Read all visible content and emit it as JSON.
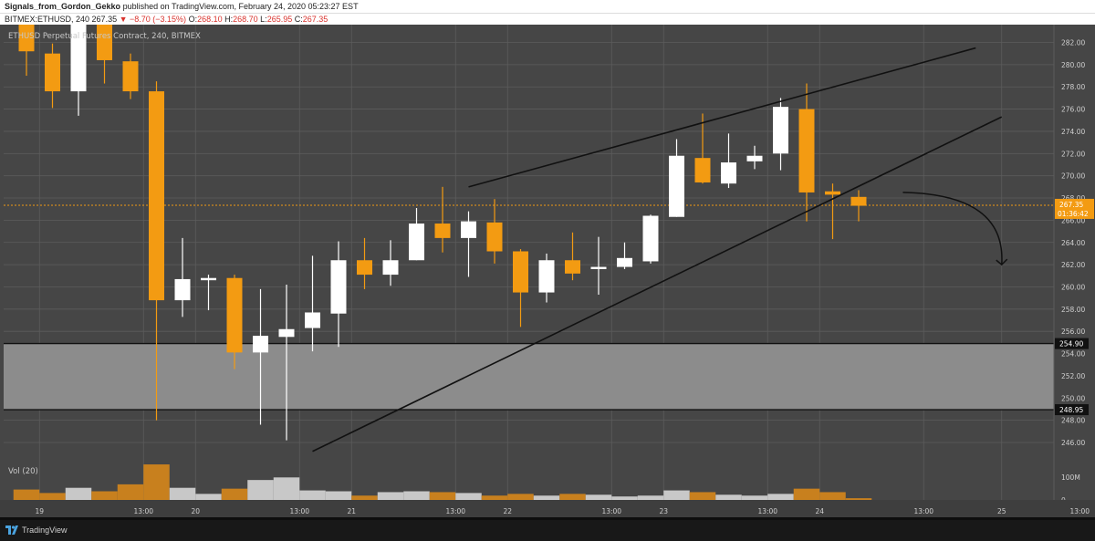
{
  "header": {
    "publisher": "Signals_from_Gordon_Gekko",
    "published_text": "published on TradingView.com, February 24, 2020 05:23:27 EST"
  },
  "symbol_bar": {
    "symbol": "BITMEX:ETHUSD, 240",
    "price": "267.35",
    "change": "▼ −8.70 (−3.15%)",
    "open_label": "O:",
    "open": "268.10",
    "high_label": "H:",
    "high": "268.70",
    "low_label": "L:",
    "low": "265.95",
    "close_label": "C:",
    "close": "267.35"
  },
  "footer": {
    "brand": "TradingView"
  },
  "colors": {
    "background": "#464646",
    "up_candle": "#ffffff",
    "down_candle": "#f39b12",
    "volume_up": "#c8c8c8",
    "volume_down": "#c8801e",
    "grid": "#5c5c5c",
    "zone_fill": "#8c8c8c",
    "trendline": "#111111",
    "last_price_line": "#f39b12"
  },
  "chart_data": {
    "type": "candlestick",
    "title": "ETHUSD Perpetual Futures Contract, 240, BITMEX",
    "ylim": [
      244.4,
      283.6
    ],
    "y_ticks": [
      "282.00",
      "280.00",
      "278.00",
      "276.00",
      "274.00",
      "272.00",
      "270.00",
      "268.00",
      "266.00",
      "264.00",
      "262.00",
      "260.00",
      "258.00",
      "256.00",
      "254.00",
      "252.00",
      "250.00",
      "248.00",
      "246.00"
    ],
    "x_ticks": [
      {
        "bar": 0.5,
        "label": "19"
      },
      {
        "bar": 4.5,
        "label": "13:00"
      },
      {
        "bar": 6.5,
        "label": "20"
      },
      {
        "bar": 10.5,
        "label": "13:00"
      },
      {
        "bar": 12.5,
        "label": "21"
      },
      {
        "bar": 16.5,
        "label": "13:00"
      },
      {
        "bar": 18.5,
        "label": "22"
      },
      {
        "bar": 22.5,
        "label": "13:00"
      },
      {
        "bar": 24.5,
        "label": "23"
      },
      {
        "bar": 28.5,
        "label": "13:00"
      },
      {
        "bar": 30.5,
        "label": "24"
      },
      {
        "bar": 34.5,
        "label": "13:00"
      },
      {
        "bar": 37.5,
        "label": "25"
      },
      {
        "bar": 40.5,
        "label": "13:00"
      }
    ],
    "candles": [
      {
        "o": 283.9,
        "h": 284.0,
        "l": 279.0,
        "c": 281.2
      },
      {
        "o": 281.0,
        "h": 281.9,
        "l": 276.1,
        "c": 277.6
      },
      {
        "o": 277.6,
        "h": 285.0,
        "l": 275.4,
        "c": 284.0
      },
      {
        "o": 284.0,
        "h": 284.5,
        "l": 278.3,
        "c": 280.4
      },
      {
        "o": 280.3,
        "h": 281.0,
        "l": 276.9,
        "c": 277.6
      },
      {
        "o": 277.6,
        "h": 278.5,
        "l": 248.0,
        "c": 258.8
      },
      {
        "o": 258.8,
        "h": 264.4,
        "l": 257.3,
        "c": 260.7
      },
      {
        "o": 260.6,
        "h": 261.1,
        "l": 257.9,
        "c": 260.8
      },
      {
        "o": 260.8,
        "h": 261.1,
        "l": 252.6,
        "c": 254.1
      },
      {
        "o": 254.1,
        "h": 259.8,
        "l": 247.6,
        "c": 255.6
      },
      {
        "o": 255.5,
        "h": 260.2,
        "l": 246.2,
        "c": 256.2
      },
      {
        "o": 256.3,
        "h": 262.8,
        "l": 254.2,
        "c": 257.7
      },
      {
        "o": 257.6,
        "h": 264.1,
        "l": 254.6,
        "c": 262.4
      },
      {
        "o": 262.4,
        "h": 264.4,
        "l": 259.8,
        "c": 261.1
      },
      {
        "o": 261.1,
        "h": 264.2,
        "l": 260.1,
        "c": 262.4
      },
      {
        "o": 262.4,
        "h": 267.1,
        "l": 262.4,
        "c": 265.7
      },
      {
        "o": 265.7,
        "h": 269.0,
        "l": 263.1,
        "c": 264.4
      },
      {
        "o": 264.4,
        "h": 266.8,
        "l": 260.9,
        "c": 265.9
      },
      {
        "o": 265.8,
        "h": 267.9,
        "l": 262.1,
        "c": 263.2
      },
      {
        "o": 263.2,
        "h": 263.4,
        "l": 256.4,
        "c": 259.5
      },
      {
        "o": 259.5,
        "h": 263.0,
        "l": 258.6,
        "c": 262.4
      },
      {
        "o": 262.4,
        "h": 264.9,
        "l": 260.6,
        "c": 261.2
      },
      {
        "o": 261.6,
        "h": 264.5,
        "l": 259.3,
        "c": 261.8
      },
      {
        "o": 261.8,
        "h": 264.0,
        "l": 261.6,
        "c": 262.6
      },
      {
        "o": 262.3,
        "h": 266.5,
        "l": 262.1,
        "c": 266.4
      },
      {
        "o": 266.3,
        "h": 273.3,
        "l": 266.3,
        "c": 271.8
      },
      {
        "o": 271.6,
        "h": 275.6,
        "l": 269.3,
        "c": 269.4
      },
      {
        "o": 269.3,
        "h": 273.8,
        "l": 268.9,
        "c": 271.2
      },
      {
        "o": 271.3,
        "h": 272.7,
        "l": 270.6,
        "c": 271.8
      },
      {
        "o": 272.0,
        "h": 277.0,
        "l": 270.5,
        "c": 276.2
      },
      {
        "o": 276.0,
        "h": 278.3,
        "l": 265.9,
        "c": 268.5
      },
      {
        "o": 268.6,
        "h": 269.3,
        "l": 264.3,
        "c": 268.3
      },
      {
        "o": 268.1,
        "h": 268.7,
        "l": 265.9,
        "c": 267.3
      }
    ],
    "volume": [
      {
        "v": 12,
        "up": false
      },
      {
        "v": 8,
        "up": false
      },
      {
        "v": 14,
        "up": true
      },
      {
        "v": 10,
        "up": false
      },
      {
        "v": 18,
        "up": false
      },
      {
        "v": 41,
        "up": false
      },
      {
        "v": 14,
        "up": true
      },
      {
        "v": 7,
        "up": true
      },
      {
        "v": 13,
        "up": false
      },
      {
        "v": 23,
        "up": true
      },
      {
        "v": 26,
        "up": true
      },
      {
        "v": 11,
        "up": true
      },
      {
        "v": 10,
        "up": true
      },
      {
        "v": 5,
        "up": false
      },
      {
        "v": 9,
        "up": true
      },
      {
        "v": 10,
        "up": true
      },
      {
        "v": 9,
        "up": false
      },
      {
        "v": 8,
        "up": true
      },
      {
        "v": 5,
        "up": false
      },
      {
        "v": 7,
        "up": false
      },
      {
        "v": 5,
        "up": true
      },
      {
        "v": 7,
        "up": false
      },
      {
        "v": 6,
        "up": true
      },
      {
        "v": 4,
        "up": true
      },
      {
        "v": 5,
        "up": true
      },
      {
        "v": 11,
        "up": true
      },
      {
        "v": 9,
        "up": false
      },
      {
        "v": 6,
        "up": true
      },
      {
        "v": 5,
        "up": true
      },
      {
        "v": 7,
        "up": true
      },
      {
        "v": 13,
        "up": false
      },
      {
        "v": 9,
        "up": false
      },
      {
        "v": 2,
        "up": false
      }
    ],
    "volume_label": "Vol (20)",
    "volume_ticks": [
      "100M",
      "0"
    ],
    "support_zone": {
      "top": 254.9,
      "bottom": 248.95
    },
    "support_labels": {
      "top": "254.90",
      "bottom": "248.95"
    },
    "last_price": {
      "value": 267.35,
      "label": "267.35",
      "countdown": "01:36:42"
    },
    "trendlines": [
      {
        "from": [
          17.0,
          269.0
        ],
        "to": [
          36.5,
          281.5
        ]
      },
      {
        "from": [
          11.0,
          245.2
        ],
        "to": [
          37.5,
          275.3
        ]
      }
    ],
    "projection_arrow": {
      "from": [
        33.7,
        268.5
      ],
      "to": [
        37.5,
        262.0
      ]
    }
  }
}
